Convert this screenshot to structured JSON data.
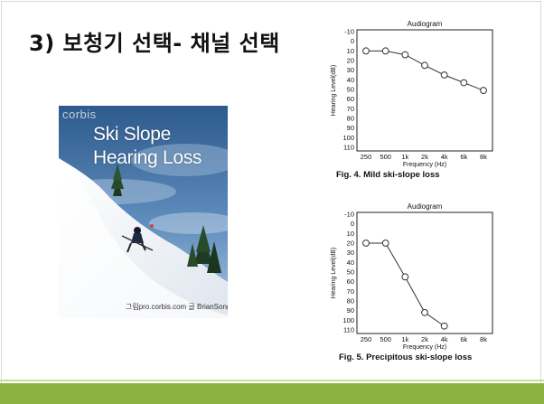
{
  "slide": {
    "title": "3) 보청기 선택- 채널 선택"
  },
  "photo": {
    "brand": "corbis",
    "title_line1": "Ski Slope",
    "title_line2": "Hearing Loss",
    "credit": "그림pro.corbis.com 글 BrianSong"
  },
  "figures": [
    {
      "caption": "Fig. 4. Mild ski-slope loss",
      "chart_data": {
        "type": "line",
        "title": "Audiogram",
        "xlabel": "Frequency (Hz)",
        "ylabel": "Hearing Level(dB)",
        "categories": [
          "250",
          "500",
          "1k",
          "2k",
          "4k",
          "6k",
          "8k"
        ],
        "y_ticks": [
          "-10",
          "0",
          "10",
          "20",
          "30",
          "40",
          "50",
          "60",
          "70",
          "80",
          "90",
          "100",
          "110"
        ],
        "ylim": [
          -10,
          110
        ],
        "y_inverted": true,
        "grid": false,
        "series": [
          {
            "values": [
              10,
              10,
              14,
              25,
              35,
              43,
              51
            ]
          }
        ]
      }
    },
    {
      "caption": "Fig. 5. Precipitous ski-slope loss",
      "chart_data": {
        "type": "line",
        "title": "Audiogram",
        "xlabel": "Frequency (Hz)",
        "ylabel": "Hearing Level(dB)",
        "categories": [
          "250",
          "500",
          "1k",
          "2k",
          "4k",
          "6k",
          "8k"
        ],
        "y_ticks": [
          "-10",
          "0",
          "10",
          "20",
          "30",
          "40",
          "50",
          "60",
          "70",
          "80",
          "90",
          "100",
          "110"
        ],
        "ylim": [
          -10,
          110
        ],
        "y_inverted": true,
        "grid": false,
        "series": [
          {
            "values": [
              20,
              20,
              55,
              92,
              106,
              null,
              null
            ]
          }
        ]
      }
    }
  ],
  "colors": {
    "bottom_bar": "#8bb23f",
    "sky_top": "#2d5a8c",
    "sky_bottom": "#8fb3d6"
  }
}
